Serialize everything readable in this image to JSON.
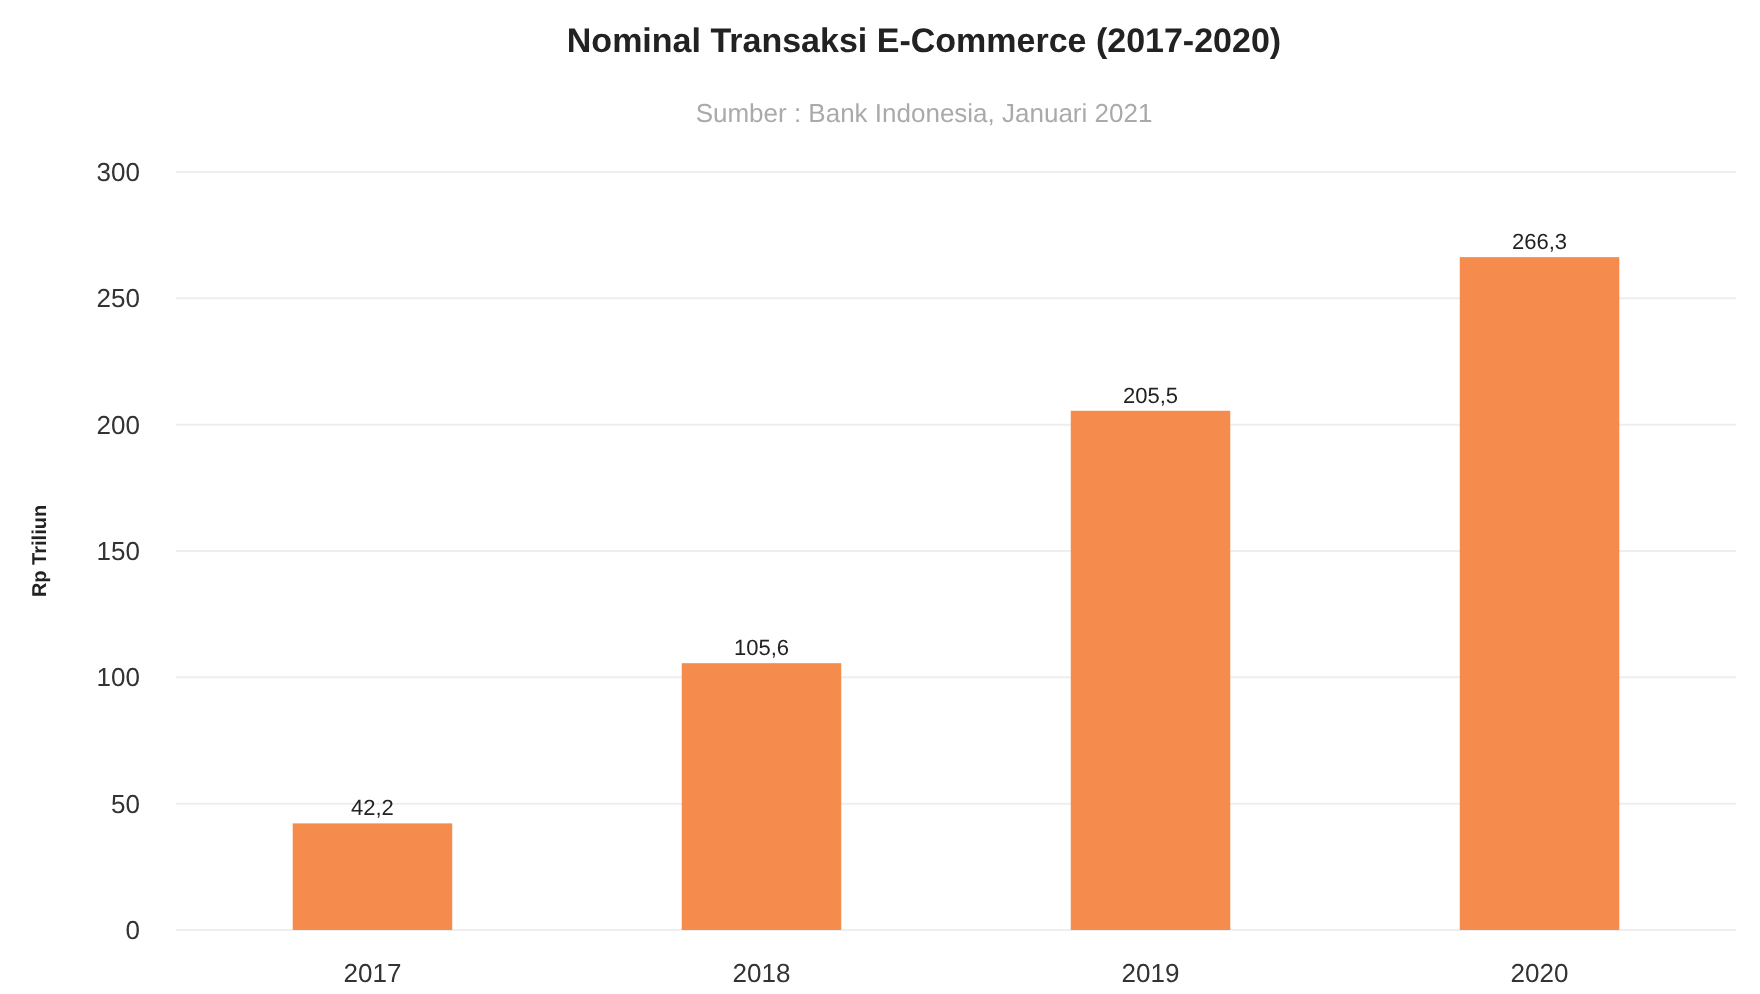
{
  "chart_data": {
    "type": "bar",
    "title": "Nominal Transaksi E-Commerce (2017-2020)",
    "subtitle": "Sumber : Bank Indonesia, Januari 2021",
    "ylabel": "Rp Triliun",
    "categories": [
      "2017",
      "2018",
      "2019",
      "2020"
    ],
    "values": [
      42.2,
      105.6,
      205.5,
      266.3
    ],
    "value_labels": [
      "42,2",
      "105,6",
      "205,5",
      "266,3"
    ],
    "color": "#f58b4c",
    "ylim": [
      0,
      300
    ],
    "yticks": [
      0,
      50,
      100,
      150,
      200,
      250,
      300
    ],
    "grid": "y"
  }
}
